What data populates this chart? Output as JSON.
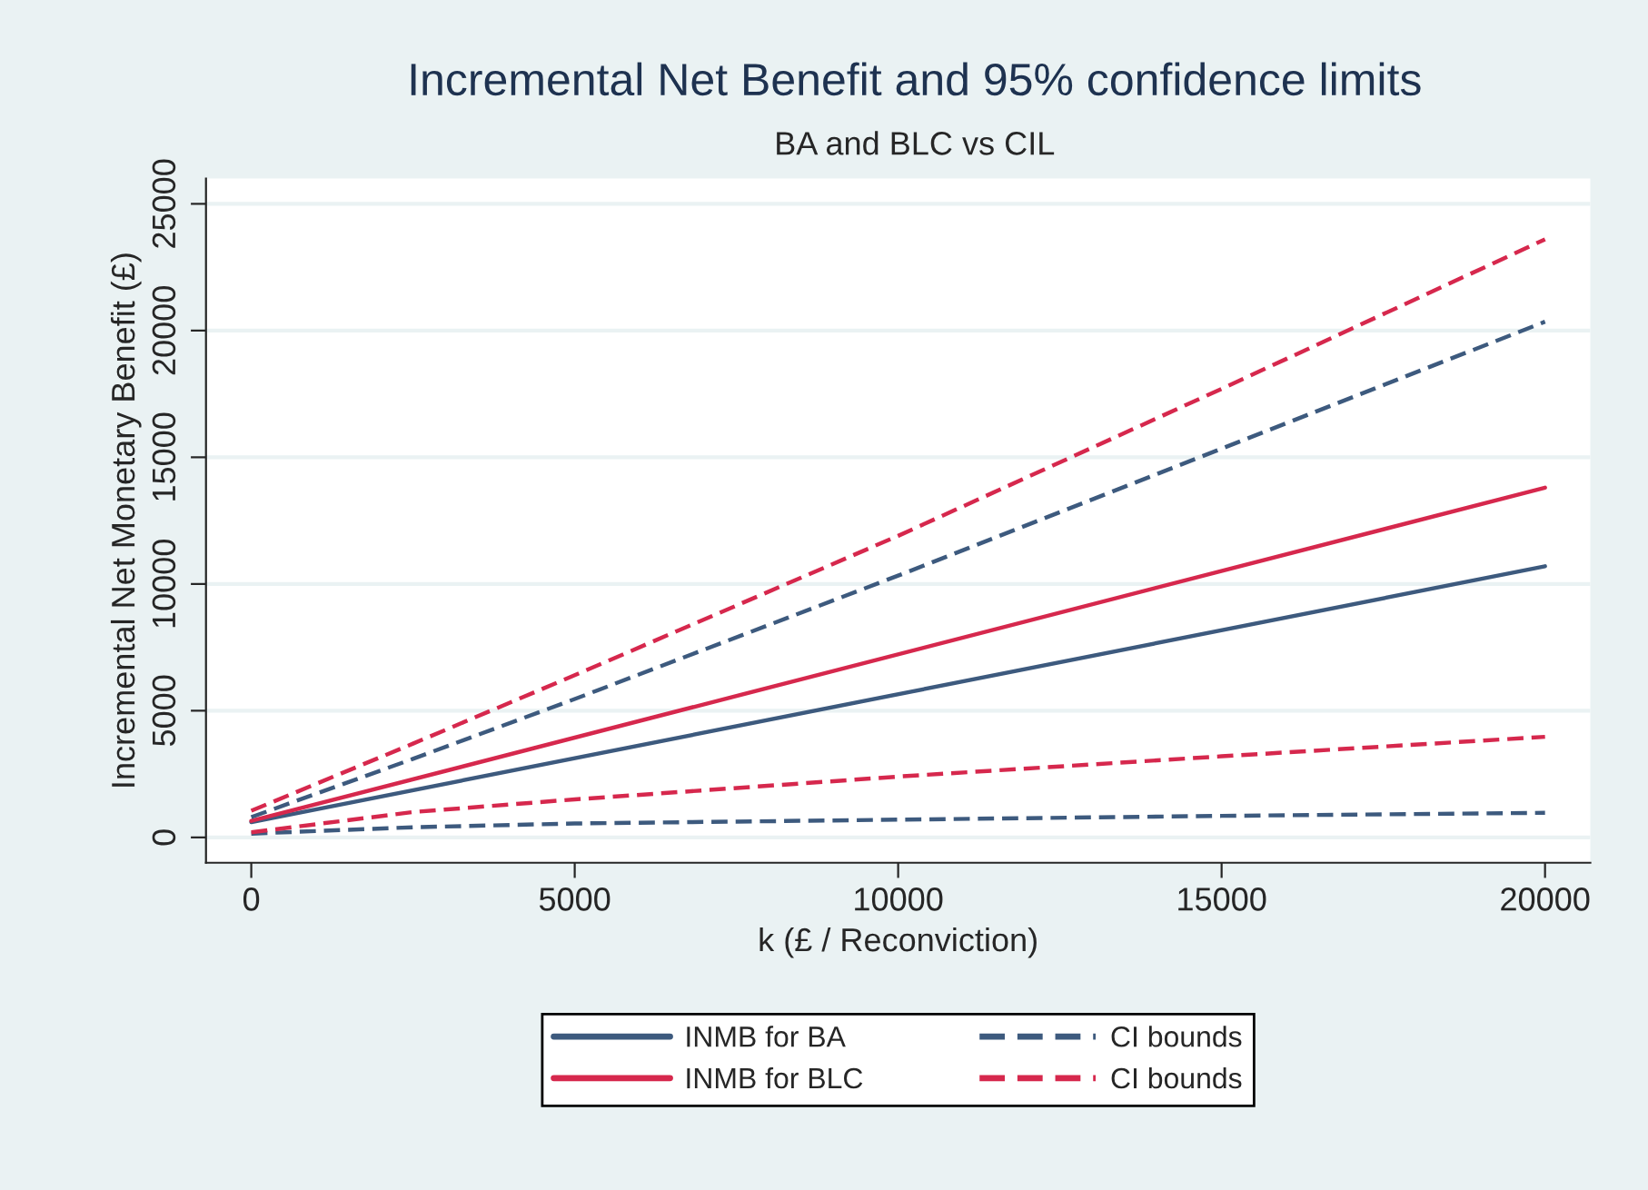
{
  "chart_data": {
    "type": "line",
    "title": "Incremental Net Benefit and 95% confidence limits",
    "subtitle": "BA and BLC vs CIL",
    "xlabel": "k (£ / Reconviction)",
    "ylabel": "Incremental Net Monetary Benefit (£)",
    "series": [
      {
        "name": "INMB for BA",
        "color": "#3d5a7e",
        "line_style": "solid",
        "x": [
          0,
          20000
        ],
        "values": [
          600,
          10700
        ]
      },
      {
        "name": "INMB for BLC",
        "color": "#d6284d",
        "line_style": "solid",
        "x": [
          0,
          20000
        ],
        "values": [
          650,
          13800
        ]
      },
      {
        "name": "CI bounds",
        "color": "#3d5a7e",
        "line_style": "dashed",
        "x": [
          0,
          2500,
          5000,
          10000,
          15000,
          20000
        ],
        "values": [
          800,
          3100,
          5460,
          10330,
          15340,
          20350
        ]
      },
      {
        "name": "CI bounds",
        "color": "#d6284d",
        "line_style": "dashed",
        "x": [
          0,
          2500,
          5000,
          10000,
          15000,
          20000
        ],
        "values": [
          1050,
          3700,
          6400,
          11900,
          17700,
          23600
        ]
      },
      {
        "color": "#3d5a7e",
        "line_style": "dashed",
        "x": [
          0,
          2500,
          5000,
          10000,
          15000,
          20000
        ],
        "values": [
          150,
          400,
          550,
          700,
          850,
          970
        ]
      },
      {
        "color": "#d6284d",
        "line_style": "dashed",
        "x": [
          0,
          2500,
          5000,
          10000,
          15000,
          20000
        ],
        "values": [
          200,
          1000,
          1500,
          2400,
          3200,
          3970
        ]
      }
    ],
    "xlim": [
      -700,
      20700
    ],
    "xticks": [
      0,
      5000,
      10000,
      15000,
      20000
    ],
    "ylim": [
      -1000,
      26000
    ],
    "yticks": [
      0,
      5000,
      10000,
      15000,
      20000,
      25000
    ],
    "grid": "y",
    "legend": "bottom"
  }
}
